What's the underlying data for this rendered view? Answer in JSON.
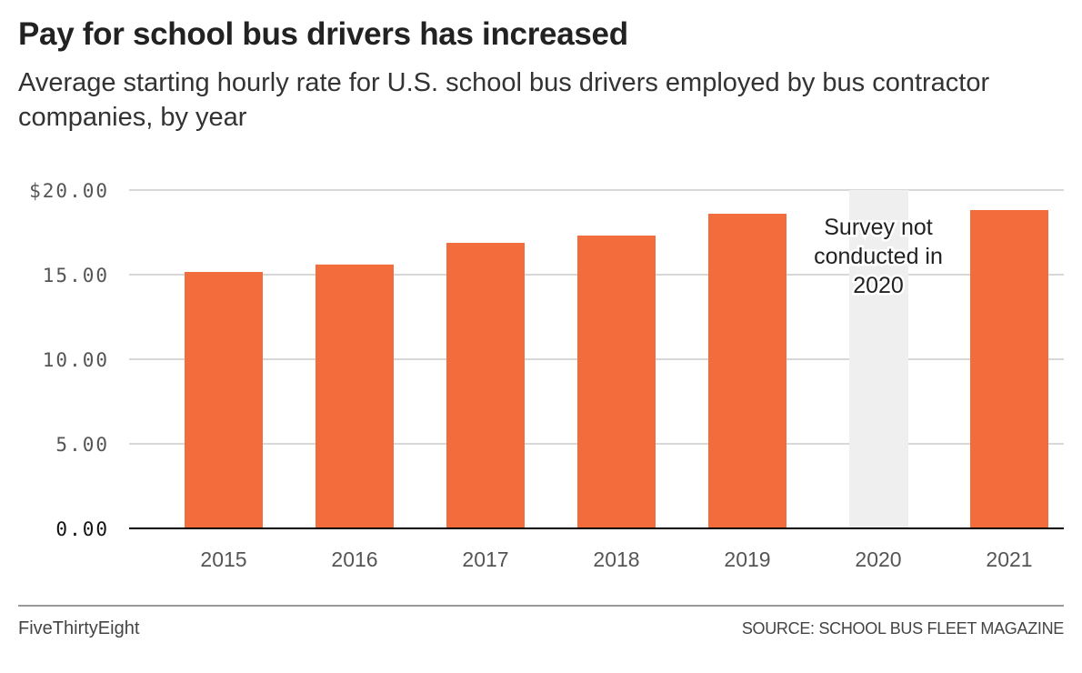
{
  "header": {
    "title": "Pay for school bus drivers has increased",
    "subtitle": "Average starting hourly rate for U.S. school bus drivers employed by bus contractor companies, by year"
  },
  "footer": {
    "brand": "FiveThirtyEight",
    "source": "SOURCE: SCHOOL BUS FLEET MAGAZINE"
  },
  "colors": {
    "bar": "#f26c3c",
    "missing_band": "#efefef",
    "grid": "#cccccc",
    "baseline": "#000000"
  },
  "chart_data": {
    "type": "bar",
    "title": "Pay for school bus drivers has increased",
    "subtitle": "Average starting hourly rate for U.S. school bus drivers employed by bus contractor companies, by year",
    "xlabel": "",
    "ylabel": "",
    "categories": [
      "2015",
      "2016",
      "2017",
      "2018",
      "2019",
      "2020",
      "2021"
    ],
    "values": [
      15.16,
      15.6,
      16.88,
      17.31,
      18.6,
      null,
      18.82
    ],
    "ylim": [
      0,
      20
    ],
    "yticks": [
      0,
      5,
      10,
      15,
      20
    ],
    "ytick_labels": [
      "0.00",
      "5.00",
      "10.00",
      "15.00",
      "$20.00"
    ],
    "grid": true,
    "annotations": [
      {
        "category": "2020",
        "lines": [
          "Survey not",
          "conducted in",
          "2020"
        ]
      }
    ],
    "source": "School Bus Fleet Magazine"
  }
}
